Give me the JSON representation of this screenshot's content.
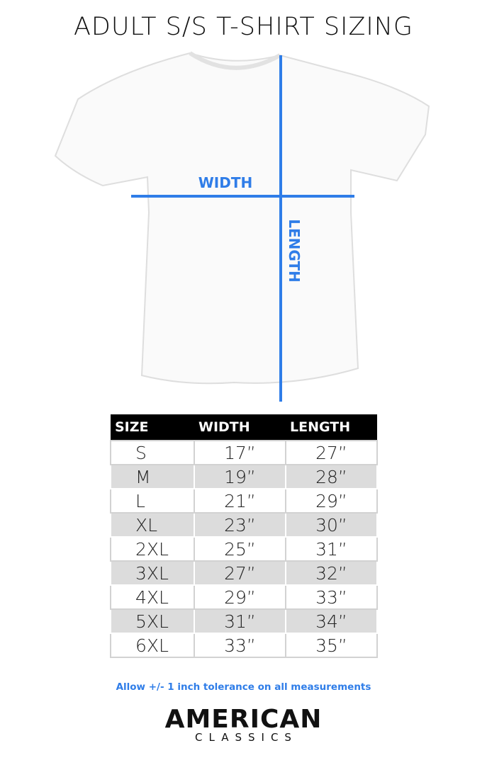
{
  "title": "ADULT S/S T-SHIRT SIZING",
  "diagram": {
    "width_label": "WIDTH",
    "length_label": "LENGTH",
    "line_color": "#2f7de8"
  },
  "table": {
    "headers": [
      "SIZE",
      "WIDTH",
      "LENGTH"
    ],
    "rows": [
      [
        "S",
        "17”",
        "27”"
      ],
      [
        "M",
        "19”",
        "28”"
      ],
      [
        "L",
        "21”",
        "29”"
      ],
      [
        "XL",
        "23”",
        "30”"
      ],
      [
        "2XL",
        "25”",
        "31”"
      ],
      [
        "3XL",
        "27”",
        "32”"
      ],
      [
        "4XL",
        "29”",
        "33”"
      ],
      [
        "5XL",
        "31”",
        "34”"
      ],
      [
        "6XL",
        "33”",
        "35”"
      ]
    ]
  },
  "note": "Allow +/- 1 inch tolerance on all measurements",
  "brand": {
    "line1": "AMERICAN",
    "line2": "CLASSICS"
  }
}
